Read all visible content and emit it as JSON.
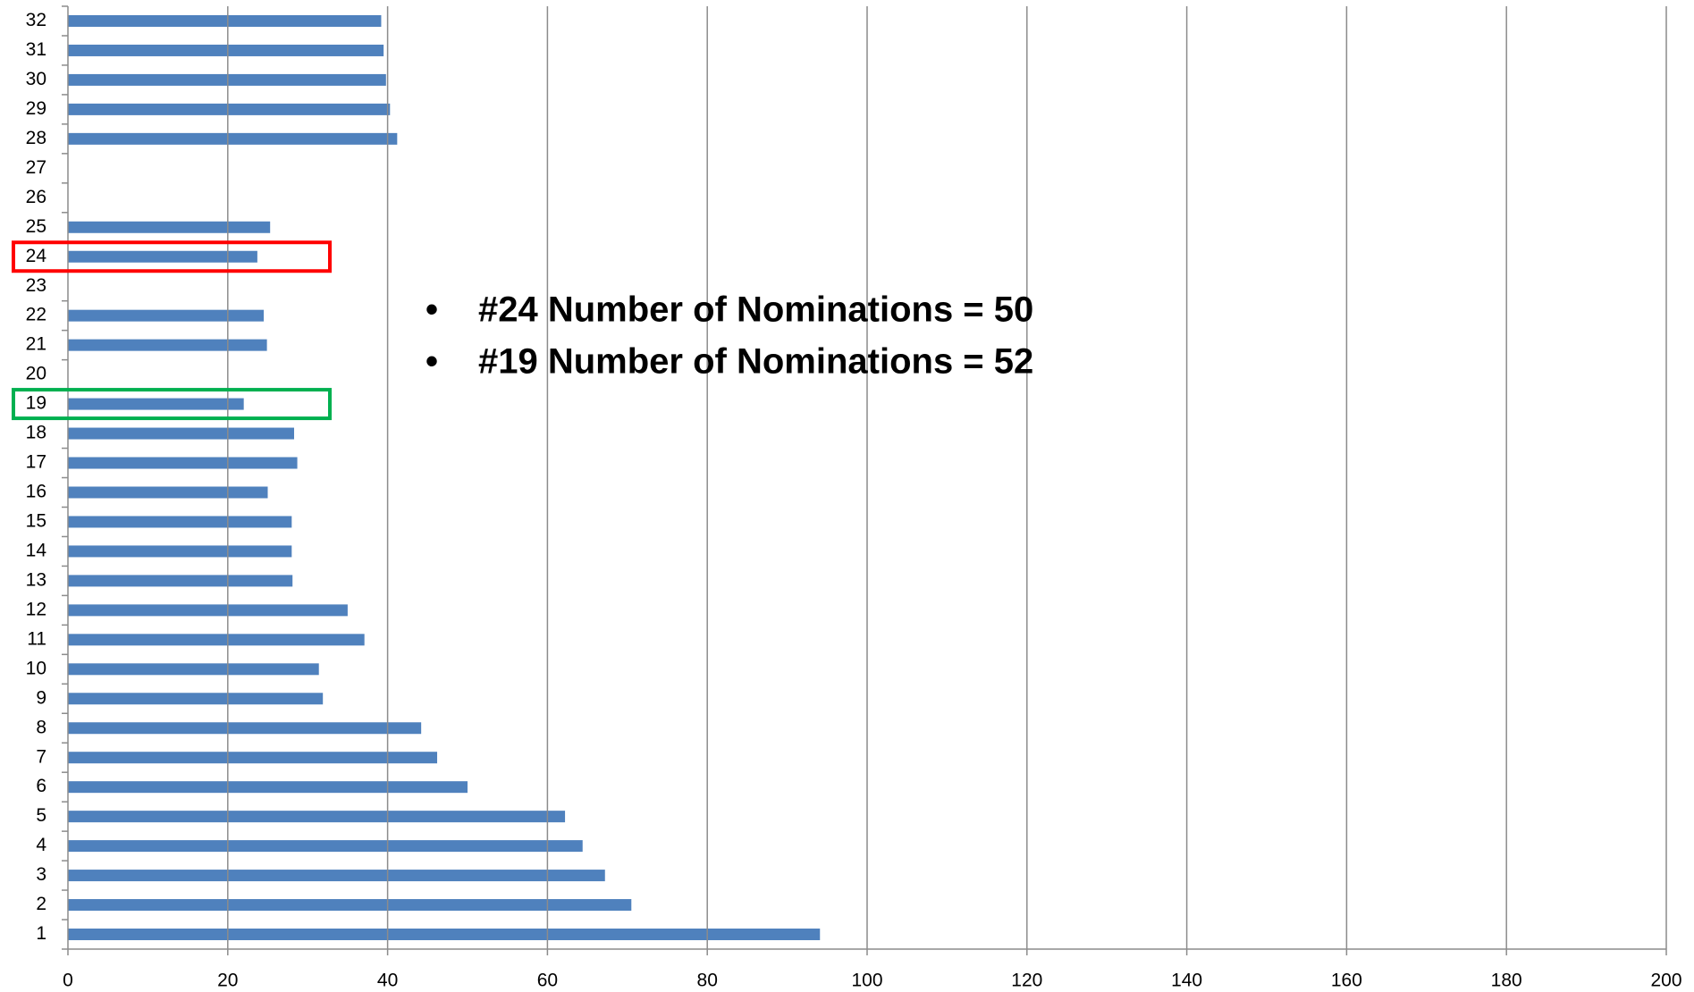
{
  "chart_data": {
    "type": "barh",
    "categories": [
      "1",
      "2",
      "3",
      "4",
      "5",
      "6",
      "7",
      "8",
      "9",
      "10",
      "11",
      "12",
      "13",
      "14",
      "15",
      "16",
      "17",
      "18",
      "19",
      "20",
      "21",
      "22",
      "23",
      "24",
      "25",
      "26",
      "27",
      "28",
      "29",
      "30",
      "31",
      "32"
    ],
    "values": [
      94.1,
      70.5,
      67.2,
      64.4,
      62.2,
      50.0,
      46.2,
      44.2,
      31.9,
      31.4,
      37.1,
      35.0,
      28.1,
      28.0,
      28.0,
      25.0,
      28.7,
      28.3,
      22.0,
      null,
      24.9,
      24.5,
      null,
      23.7,
      25.3,
      null,
      null,
      41.2,
      40.3,
      39.8,
      39.5,
      39.2
    ],
    "color": "#4f81bd",
    "xlim": [
      0,
      200
    ],
    "xticks": [
      0,
      20,
      40,
      60,
      80,
      100,
      120,
      140,
      160,
      180,
      200
    ],
    "grid": true,
    "annotations": [
      "#24 Number of Nominations = 50",
      "#19 Number of Nominations = 52"
    ]
  }
}
